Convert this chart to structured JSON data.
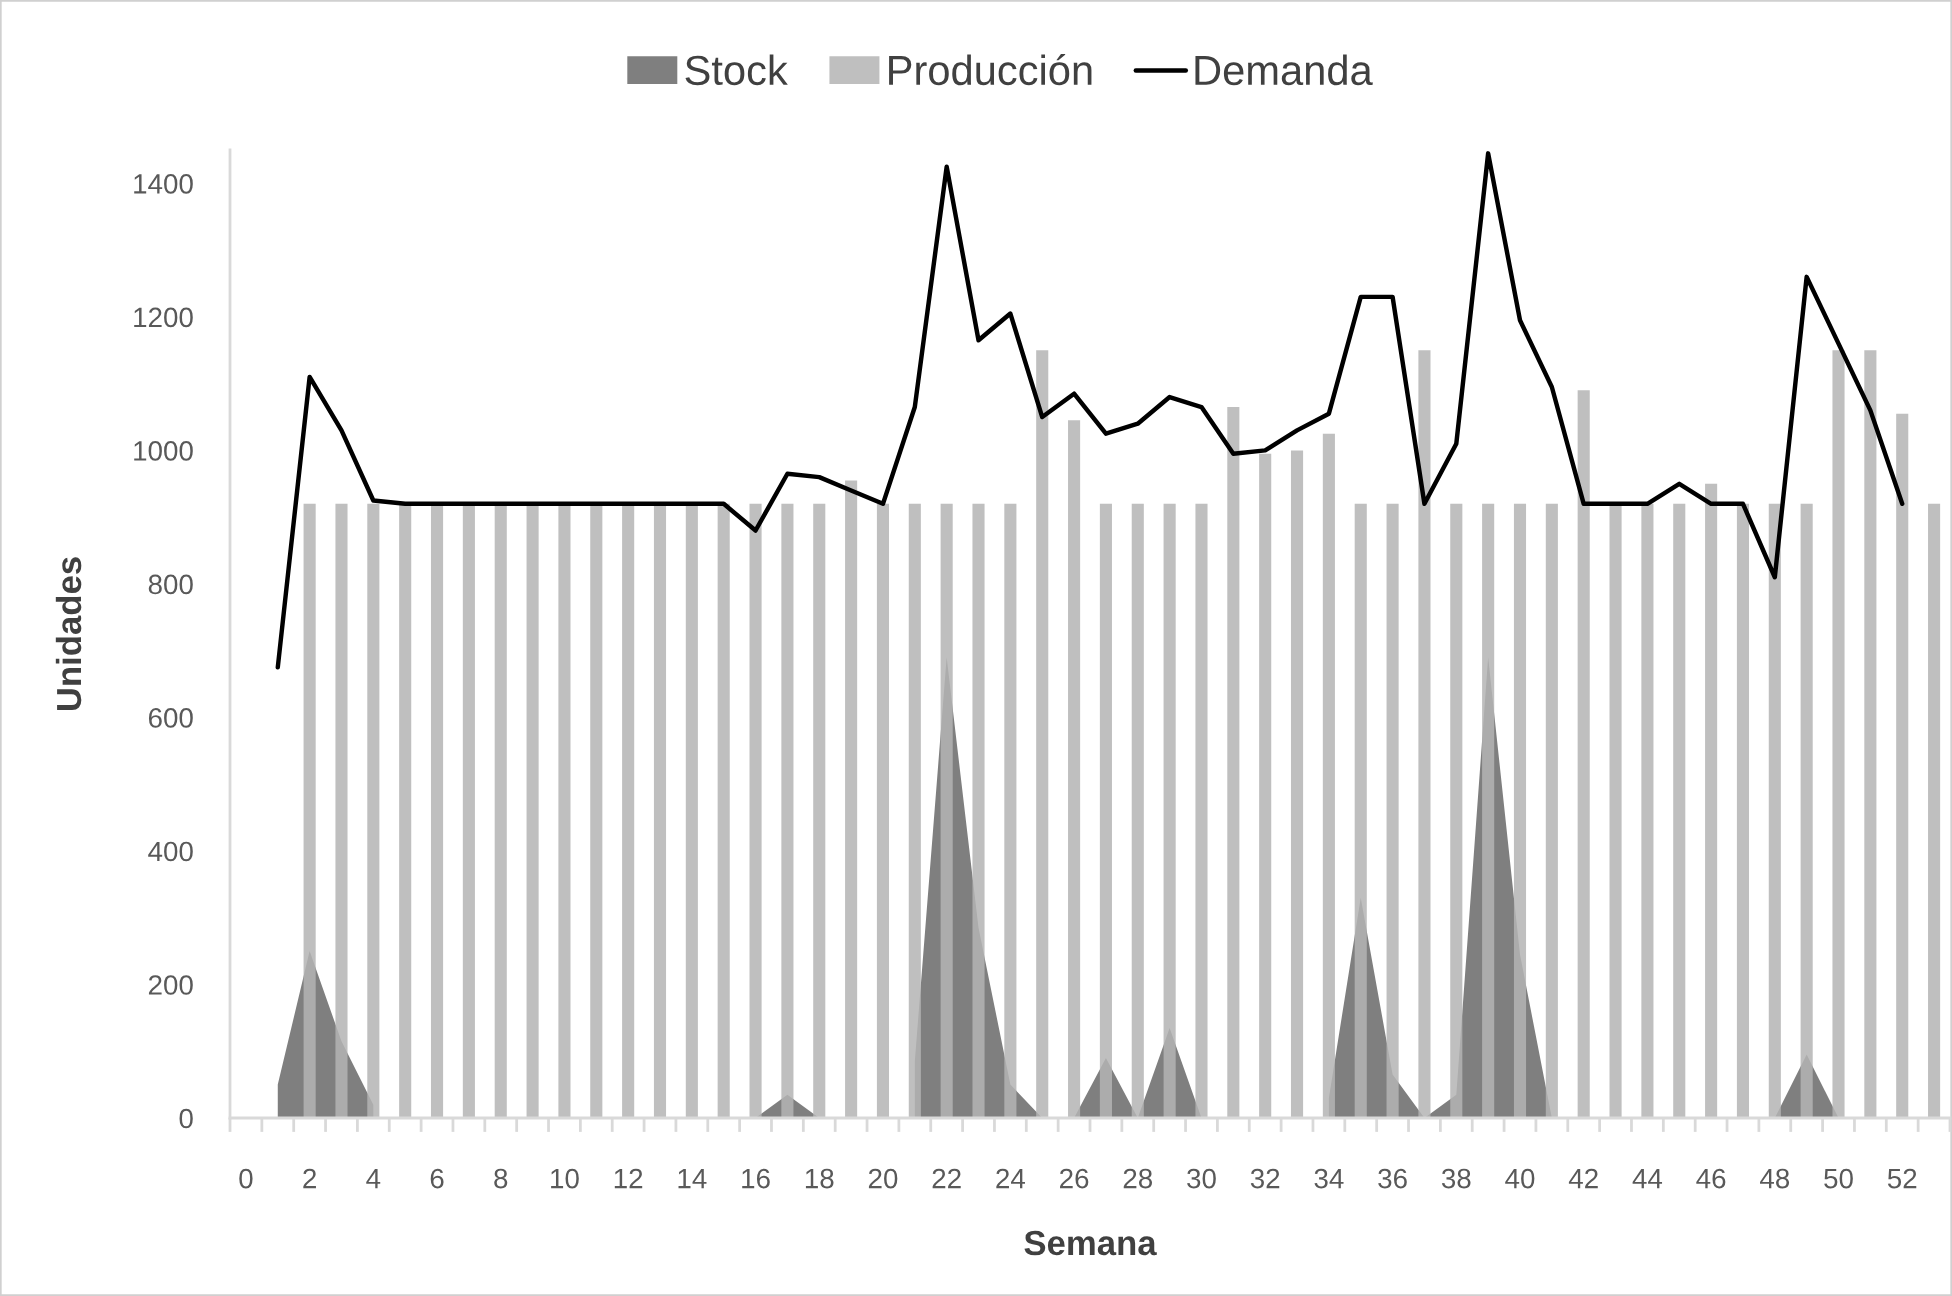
{
  "chart_data": {
    "type": "bar",
    "xlabel": "Semana",
    "ylabel": "Unidades",
    "legend": "top",
    "categories": [
      "0",
      null,
      "2",
      null,
      "4",
      null,
      "6",
      null,
      "8",
      null,
      "10",
      null,
      "12",
      null,
      "14",
      null,
      "16",
      null,
      "18",
      null,
      "20",
      null,
      "22",
      null,
      "24",
      null,
      "26",
      null,
      "28",
      null,
      "30",
      null,
      "32",
      null,
      "34",
      null,
      "36",
      null,
      "38",
      null,
      "40",
      null,
      "42",
      null,
      "44",
      null,
      "46",
      null,
      "48",
      null,
      "50",
      null,
      "52",
      null
    ],
    "ylim": [
      0,
      1450
    ],
    "yticks": [
      0,
      200,
      400,
      600,
      800,
      1000,
      1200,
      1400
    ],
    "series": [
      {
        "name": "Stock",
        "type": "area",
        "color": "#7f7f7f",
        "values": [
          null,
          50,
          250,
          115,
          20,
          null,
          null,
          null,
          null,
          null,
          null,
          null,
          null,
          null,
          null,
          null,
          0,
          35,
          0,
          null,
          null,
          85,
          690,
          285,
          50,
          0,
          0,
          90,
          0,
          135,
          0,
          null,
          null,
          null,
          30,
          330,
          65,
          0,
          35,
          690,
          245,
          0,
          null,
          null,
          null,
          null,
          null,
          null,
          0,
          95,
          0,
          null,
          null,
          null
        ]
      },
      {
        "name": "Producción",
        "color": "#bfbfbf",
        "values": [
          null,
          null,
          920,
          920,
          920,
          920,
          920,
          920,
          920,
          920,
          920,
          920,
          920,
          920,
          920,
          920,
          920,
          920,
          920,
          955,
          920,
          920,
          920,
          920,
          920,
          1150,
          1045,
          920,
          920,
          920,
          920,
          1065,
          995,
          1000,
          1025,
          920,
          920,
          1150,
          920,
          920,
          920,
          920,
          1090,
          920,
          920,
          920,
          950,
          920,
          920,
          920,
          1150,
          1150,
          1055,
          920
        ]
      },
      {
        "name": "Demanda",
        "type": "line",
        "color": "#000000",
        "values": [
          null,
          675,
          1110,
          1030,
          925,
          920,
          920,
          920,
          920,
          920,
          920,
          920,
          920,
          920,
          920,
          920,
          880,
          965,
          960,
          940,
          920,
          1065,
          1425,
          1165,
          1205,
          1050,
          1085,
          1025,
          1040,
          1080,
          1065,
          995,
          1000,
          1030,
          1055,
          1230,
          1230,
          920,
          1010,
          1445,
          1195,
          1095,
          920,
          920,
          920,
          950,
          920,
          920,
          810,
          1260,
          1160,
          1060,
          920,
          null
        ]
      }
    ]
  }
}
